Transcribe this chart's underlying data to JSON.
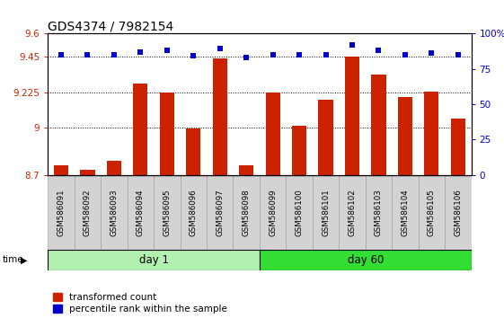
{
  "title": "GDS4374 / 7982154",
  "samples": [
    "GSM586091",
    "GSM586092",
    "GSM586093",
    "GSM586094",
    "GSM586095",
    "GSM586096",
    "GSM586097",
    "GSM586098",
    "GSM586099",
    "GSM586100",
    "GSM586101",
    "GSM586102",
    "GSM586103",
    "GSM586104",
    "GSM586105",
    "GSM586106"
  ],
  "bar_values": [
    8.76,
    8.73,
    8.79,
    9.28,
    9.225,
    8.995,
    9.44,
    8.76,
    9.225,
    9.01,
    9.18,
    9.455,
    9.34,
    9.195,
    9.23,
    9.06
  ],
  "bar_bottom": 8.7,
  "bar_color": "#cc2200",
  "percentile_values": [
    85,
    85,
    85,
    87,
    88,
    84,
    89,
    83,
    85,
    85,
    85,
    92,
    88,
    85,
    86,
    85
  ],
  "dot_color": "#0000cc",
  "ylim_left": [
    8.7,
    9.6
  ],
  "ylim_right": [
    0,
    100
  ],
  "yticks_left": [
    8.7,
    9.0,
    9.225,
    9.45,
    9.6
  ],
  "ytick_labels_left": [
    "8.7",
    "9",
    "9.225",
    "9.45",
    "9.6"
  ],
  "yticks_right": [
    0,
    25,
    50,
    75,
    100
  ],
  "ytick_labels_right": [
    "0",
    "25",
    "50",
    "75",
    "100%"
  ],
  "grid_values": [
    9.0,
    9.225,
    9.45
  ],
  "day1_count": 8,
  "day60_count": 8,
  "day1_label": "day 1",
  "day60_label": "day 60",
  "time_label": "time",
  "legend_bar_label": "transformed count",
  "legend_dot_label": "percentile rank within the sample",
  "background_color": "#ffffff",
  "sample_box_color": "#d3d3d3",
  "day1_color": "#b2f0b2",
  "day60_color": "#33dd33",
  "title_fontsize": 10,
  "axis_fontsize": 7.5,
  "sample_fontsize": 6.2,
  "day_fontsize": 8.5,
  "legend_fontsize": 7.5
}
